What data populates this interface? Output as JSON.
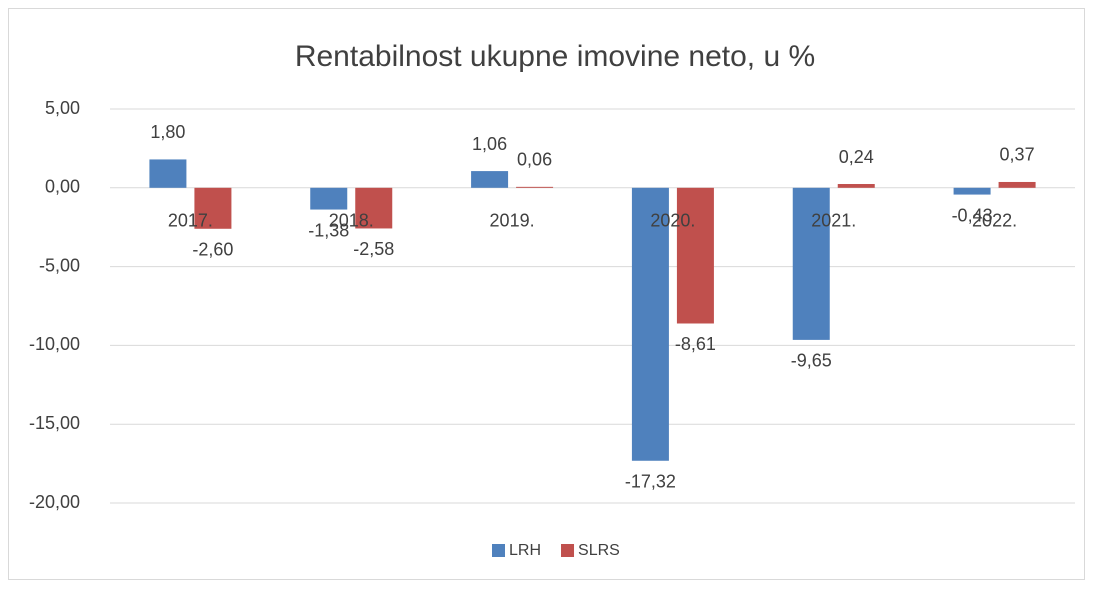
{
  "chart_data": {
    "type": "bar",
    "title": "Rentabilnost ukupne imovine neto,  u %",
    "categories": [
      "2017.",
      "2018.",
      "2019.",
      "2020.",
      "2021.",
      "2022."
    ],
    "series": [
      {
        "name": "LRH",
        "color": "#4f81bd",
        "values": [
          1.8,
          -1.38,
          1.06,
          -17.32,
          -9.65,
          -0.43
        ],
        "value_labels": [
          "1,80",
          "-1,38",
          "1,06",
          "-17,32",
          "-9,65",
          "-0,43"
        ]
      },
      {
        "name": "SLRS",
        "color": "#c0504d",
        "values": [
          -2.6,
          -2.58,
          0.06,
          -8.61,
          0.24,
          0.37
        ],
        "value_labels": [
          "-2,60",
          "-2,58",
          "0,06",
          "-8,61",
          "0,24",
          "0,37"
        ]
      }
    ],
    "ylim": [
      -20,
      5
    ],
    "yticks": [
      {
        "value": -20,
        "label": "-20,00"
      },
      {
        "value": -15,
        "label": "-15,00"
      },
      {
        "value": -10,
        "label": "-10,00"
      },
      {
        "value": -5,
        "label": "-5,00"
      },
      {
        "value": 0,
        "label": "0,00"
      },
      {
        "value": 5,
        "label": "5,00"
      }
    ],
    "grid": true,
    "legend": "bottom"
  }
}
